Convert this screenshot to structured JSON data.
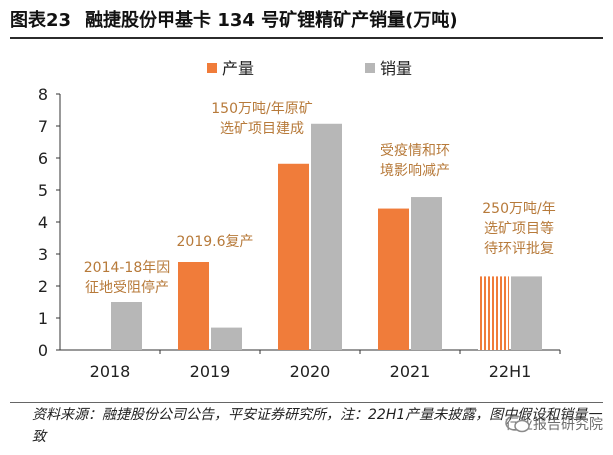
{
  "title": {
    "figure_no": "图表23",
    "text": "融捷股份甲基卡 134 号矿锂精矿产销量(万吨)"
  },
  "source": "资料来源：融捷股份公司公告，平安证券研究所，注：22H1产量未披露，图中假设和销量一致",
  "watermark": "行业报告研究院",
  "colors": {
    "production": "#f07c3a",
    "sales": "#b7b7b7",
    "annotation": "#b77a3a",
    "axis": "#333333"
  },
  "chart_data": {
    "type": "bar",
    "categories": [
      "2018",
      "2019",
      "2020",
      "2021",
      "22H1"
    ],
    "series": [
      {
        "name": "产量",
        "values": [
          null,
          2.75,
          5.82,
          4.42,
          2.3
        ]
      },
      {
        "name": "销量",
        "values": [
          1.5,
          0.7,
          7.07,
          4.78,
          2.3
        ]
      }
    ],
    "assumed": [
      {
        "series": 0,
        "category": "22H1"
      }
    ],
    "ylim": [
      0,
      8
    ],
    "yticks": [
      0,
      1,
      2,
      3,
      4,
      5,
      6,
      7,
      8
    ],
    "legend": "top",
    "grid": false,
    "annotations": [
      {
        "category": "2018",
        "lines": [
          "2014-18年因",
          "征地受阻停产"
        ]
      },
      {
        "category": "2019",
        "lines": [
          "2019.6复产"
        ]
      },
      {
        "category": "2020",
        "lines": [
          "150万吨/年原矿",
          "选矿项目建成"
        ]
      },
      {
        "category": "2021",
        "lines": [
          "受疫情和环",
          "境影响减产"
        ]
      },
      {
        "category": "22H1",
        "lines": [
          "250万吨/年",
          "选矿项目等",
          "待环评批复"
        ]
      }
    ]
  }
}
